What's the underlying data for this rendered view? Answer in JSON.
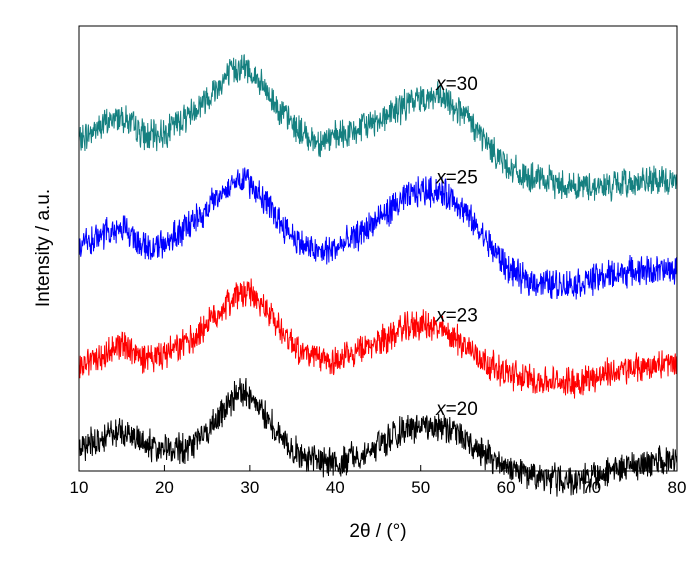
{
  "chart_data": {
    "type": "line",
    "xlabel": "2θ / (°)",
    "ylabel": "Intensity / a.u.",
    "xlim": [
      10,
      80
    ],
    "ylim": [
      0,
      100
    ],
    "x_ticks": [
      10,
      20,
      30,
      40,
      50,
      60,
      70,
      80
    ],
    "y_ticks_shown": false,
    "grid": false,
    "legend": "inline labels at right",
    "series": [
      {
        "name": "x=30",
        "name_prefix": "x",
        "name_suffix": "=30",
        "color": "#158080",
        "x": [
          10,
          12,
          14,
          15,
          16,
          18,
          20,
          22,
          24,
          26,
          28,
          29,
          30,
          32,
          34,
          36,
          38,
          40,
          42,
          44,
          46,
          48,
          50,
          52,
          54,
          56,
          58,
          60,
          62,
          65,
          68,
          70,
          72,
          75,
          78,
          80
        ],
        "y": [
          74,
          77,
          79,
          80,
          78,
          75,
          76,
          79,
          82,
          86,
          90,
          91,
          90,
          85,
          80,
          76,
          74,
          75,
          76,
          78,
          80,
          82,
          84,
          84,
          82,
          78,
          73,
          69,
          66,
          65,
          64,
          64,
          64,
          65,
          65,
          65
        ]
      },
      {
        "name": "x=25",
        "name_prefix": "x",
        "name_suffix": "=25",
        "color": "#0000ff",
        "x": [
          10,
          12,
          14,
          15,
          16,
          18,
          20,
          22,
          24,
          26,
          28,
          29,
          30,
          32,
          34,
          36,
          38,
          40,
          42,
          44,
          46,
          48,
          50,
          52,
          54,
          56,
          58,
          60,
          62,
          65,
          68,
          70,
          72,
          75,
          78,
          80
        ],
        "y": [
          50,
          52,
          54,
          55,
          53,
          50,
          51,
          54,
          57,
          61,
          65,
          66,
          65,
          60,
          55,
          51,
          49,
          50,
          52,
          55,
          58,
          61,
          63,
          63,
          61,
          56,
          51,
          46,
          43,
          42,
          42,
          43,
          44,
          45,
          45,
          45
        ]
      },
      {
        "name": "x=23",
        "name_prefix": "x",
        "name_suffix": "=23",
        "color": "#ff0000",
        "x": [
          10,
          12,
          14,
          15,
          16,
          18,
          20,
          22,
          24,
          26,
          28,
          29,
          30,
          32,
          34,
          36,
          38,
          40,
          42,
          44,
          46,
          48,
          50,
          52,
          54,
          56,
          58,
          60,
          62,
          65,
          68,
          70,
          72,
          75,
          78,
          80
        ],
        "y": [
          24,
          25,
          27,
          29,
          27,
          25,
          26,
          28,
          31,
          35,
          39,
          40,
          40,
          36,
          31,
          27,
          25,
          25,
          26,
          28,
          30,
          32,
          33,
          32,
          30,
          27,
          24,
          22,
          21,
          20,
          20,
          21,
          22,
          23,
          24,
          24
        ]
      },
      {
        "name": "x=20",
        "name_prefix": "x",
        "name_suffix": "=20",
        "color": "#000000",
        "x": [
          10,
          12,
          14,
          15,
          16,
          18,
          20,
          22,
          24,
          26,
          28,
          29,
          30,
          32,
          34,
          36,
          38,
          40,
          42,
          44,
          46,
          48,
          50,
          52,
          54,
          56,
          58,
          60,
          62,
          65,
          68,
          70,
          72,
          75,
          78,
          80
        ],
        "y": [
          5,
          7,
          9,
          9,
          8,
          6,
          5,
          5,
          7,
          11,
          16,
          18,
          17,
          12,
          7,
          3,
          2,
          2,
          3,
          5,
          7,
          9,
          10,
          10,
          9,
          6,
          3,
          1,
          -1,
          -2,
          -2,
          -1,
          0,
          1,
          2,
          3
        ]
      }
    ]
  }
}
